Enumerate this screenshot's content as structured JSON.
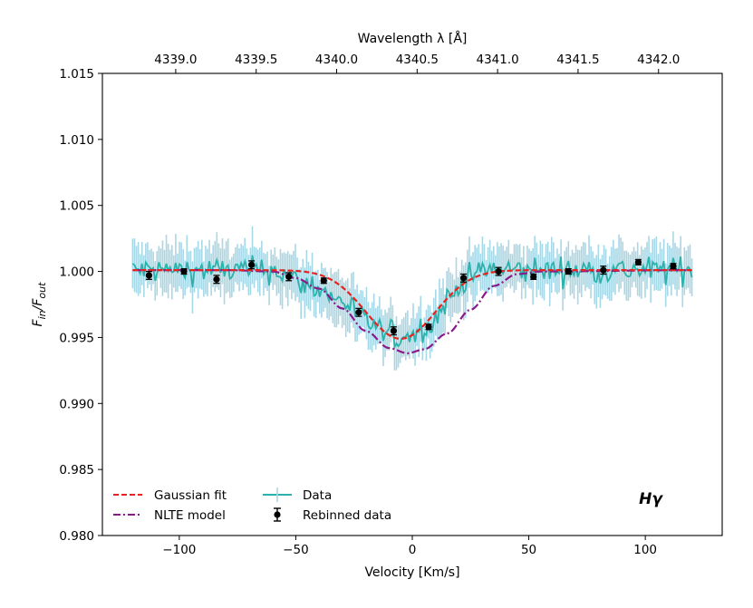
{
  "chart_data": {
    "type": "line",
    "xlabel": "Velocity [Km/s]",
    "ylabel_main": "F",
    "ylabel_sub_in": "in",
    "ylabel_sep": "/F",
    "ylabel_sub_out": "out",
    "top_xlabel": "Wavelength λ [Å]",
    "annotation": "Hγ",
    "xlim": [
      -133,
      133
    ],
    "ylim": [
      0.98,
      1.015
    ],
    "x_ticks": [
      -100,
      -50,
      0,
      50,
      100
    ],
    "x_tick_labels": [
      "−100",
      "−50",
      "0",
      "50",
      "100"
    ],
    "y_ticks": [
      0.98,
      0.985,
      0.99,
      0.995,
      1.0,
      1.005,
      1.01,
      1.015
    ],
    "y_tick_labels": [
      "0.980",
      "0.985",
      "0.990",
      "0.995",
      "1.000",
      "1.005",
      "1.010",
      "1.015"
    ],
    "top_ticks_wavelength": [
      4339.0,
      4339.5,
      4340.0,
      4340.5,
      4341.0,
      4341.5,
      4342.0
    ],
    "top_tick_labels": [
      "4339.0",
      "4339.5",
      "4340.0",
      "4340.5",
      "4341.0",
      "4341.5",
      "4342.0"
    ],
    "top_axis_ref": {
      "wavelength": 4340.47,
      "velocity": 0,
      "velocity_per_angstrom": 69.07
    },
    "legend": {
      "position": "lower-left",
      "entries": [
        "Gaussian fit",
        "NLTE model",
        "Data",
        "Rebinned data"
      ]
    },
    "colors": {
      "gaussian": "#e8231f",
      "nlte": "#8a1a8a",
      "data_line": "#2ab3ac",
      "data_err": "#a8d7e6",
      "rebinned": "#000000"
    },
    "series": [
      {
        "name": "Gaussian fit",
        "style": "dashed",
        "model": {
          "baseline": 1.0001,
          "amplitude": 0.0052,
          "center": -5,
          "sigma": 15
        },
        "x_range": [
          -120,
          120
        ]
      },
      {
        "name": "NLTE model",
        "style": "dash-dot",
        "points": [
          [
            -120,
            1.0001
          ],
          [
            -80,
            1.0001
          ],
          [
            -60,
            1.0
          ],
          [
            -50,
            0.9995
          ],
          [
            -40,
            0.9987
          ],
          [
            -30,
            0.9972
          ],
          [
            -20,
            0.9955
          ],
          [
            -10,
            0.9942
          ],
          [
            -2,
            0.9938
          ],
          [
            5,
            0.9941
          ],
          [
            15,
            0.9953
          ],
          [
            25,
            0.9971
          ],
          [
            35,
            0.9989
          ],
          [
            45,
            0.9998
          ],
          [
            55,
            1.0
          ],
          [
            120,
            1.0001
          ]
        ]
      },
      {
        "name": "Data",
        "style": "noisy",
        "envelope": [
          [
            -120,
            1.0001
          ],
          [
            -60,
            1.0001
          ],
          [
            -45,
            0.999
          ],
          [
            -30,
            0.9978
          ],
          [
            -20,
            0.9962
          ],
          [
            -10,
            0.9952
          ],
          [
            -5,
            0.995
          ],
          [
            0,
            0.9953
          ],
          [
            8,
            0.996
          ],
          [
            15,
            0.9978
          ],
          [
            22,
            0.9993
          ],
          [
            30,
            1.0001
          ],
          [
            120,
            1.0001
          ]
        ],
        "noise_line": 0.0009,
        "noise_err": 0.0022,
        "n_points": 300
      },
      {
        "name": "Rebinned data",
        "style": "errorbar",
        "x": [
          -113,
          -98,
          -84,
          -69,
          -53,
          -38,
          -23,
          -8,
          7,
          22,
          37,
          52,
          67,
          82,
          97,
          112
        ],
        "y": [
          0.9997,
          1.0,
          0.9994,
          1.0005,
          0.9996,
          0.9993,
          0.9969,
          0.9955,
          0.9958,
          0.9995,
          1.0,
          0.9996,
          1.0,
          1.0001,
          1.0007,
          1.0004
        ],
        "yerr": [
          0.0003,
          0.0002,
          0.0003,
          0.0003,
          0.0003,
          0.0002,
          0.0003,
          0.0003,
          0.0002,
          0.0003,
          0.0003,
          0.0002,
          0.0002,
          0.0003,
          0.0002,
          0.0002
        ]
      }
    ]
  }
}
